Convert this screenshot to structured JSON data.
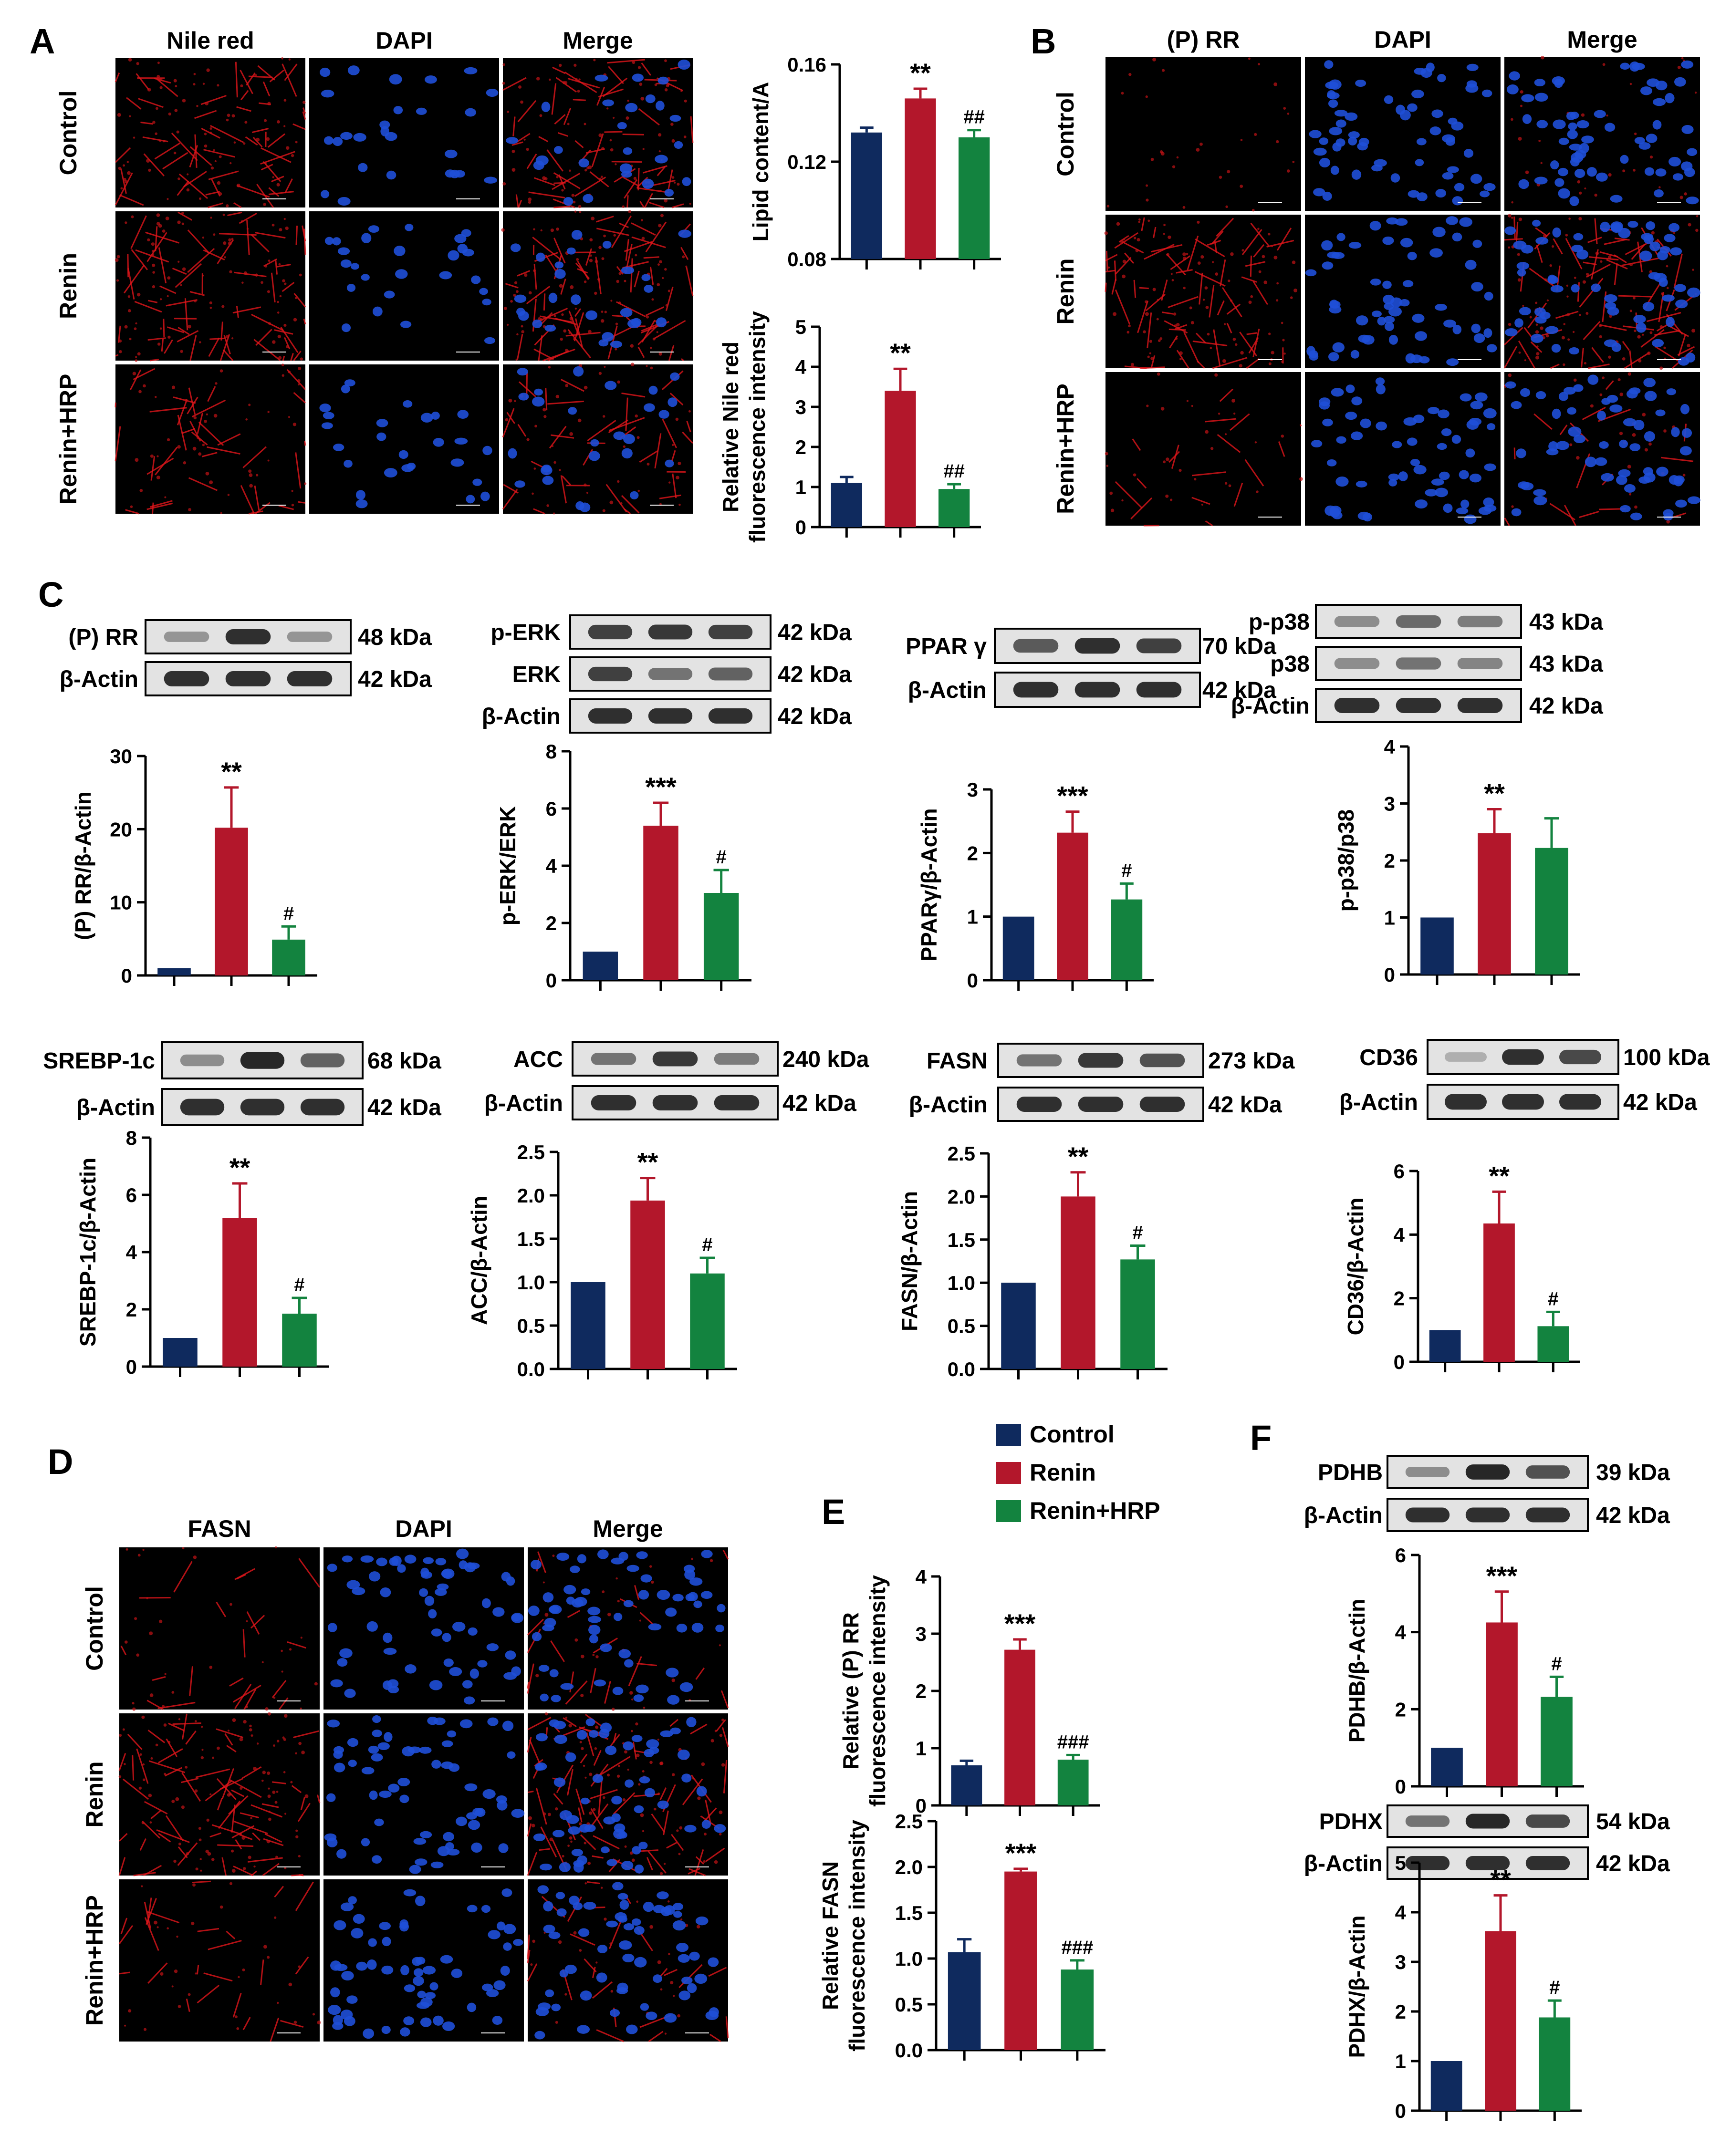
{
  "panel_letters": {
    "A": "A",
    "B": "B",
    "C": "C",
    "D": "D",
    "E": "E",
    "F": "F"
  },
  "micrographs": {
    "A": {
      "columns": [
        "Nile red",
        "DAPI",
        "Merge"
      ],
      "rows": [
        "Control",
        "Renin",
        "Renin+HRP"
      ]
    },
    "B": {
      "columns": [
        "(P) RR",
        "DAPI",
        "Merge"
      ],
      "rows": [
        "Control",
        "Renin",
        "Renin+HRP"
      ]
    },
    "D": {
      "columns": [
        "FASN",
        "DAPI",
        "Merge"
      ],
      "rows": [
        "Control",
        "Renin",
        "Renin+HRP"
      ]
    }
  },
  "blots": {
    "prr": {
      "rows": [
        {
          "label": "(P) RR",
          "kda": "48 kDa"
        },
        {
          "label": "β-Actin",
          "kda": "42 kDa"
        }
      ]
    },
    "erk": {
      "rows": [
        {
          "label": "p-ERK",
          "kda": "42 kDa"
        },
        {
          "label": "ERK",
          "kda": "42 kDa"
        },
        {
          "label": "β-Actin",
          "kda": "42 kDa"
        }
      ]
    },
    "ppar": {
      "rows": [
        {
          "label": "PPAR γ",
          "kda": "70 kDa"
        },
        {
          "label": "β-Actin",
          "kda": "42 kDa"
        }
      ]
    },
    "p38": {
      "rows": [
        {
          "label": "p-p38",
          "kda": "43 kDa"
        },
        {
          "label": "p38",
          "kda": "43 kDa"
        },
        {
          "label": "β-Actin",
          "kda": "42 kDa"
        }
      ]
    },
    "srebp": {
      "rows": [
        {
          "label": "SREBP-1c",
          "kda": "68 kDa"
        },
        {
          "label": "β-Actin",
          "kda": "42 kDa"
        }
      ]
    },
    "acc": {
      "rows": [
        {
          "label": "ACC",
          "kda": "240 kDa"
        },
        {
          "label": "β-Actin",
          "kda": "42 kDa"
        }
      ]
    },
    "fasn": {
      "rows": [
        {
          "label": "FASN",
          "kda": "273 kDa"
        },
        {
          "label": "β-Actin",
          "kda": "42 kDa"
        }
      ]
    },
    "cd36": {
      "rows": [
        {
          "label": "CD36",
          "kda": "100 kDa"
        },
        {
          "label": "β-Actin",
          "kda": "42 kDa"
        }
      ]
    },
    "pdhb": {
      "rows": [
        {
          "label": "PDHB",
          "kda": "39 kDa"
        },
        {
          "label": "β-Actin",
          "kda": "42 kDa"
        }
      ]
    },
    "pdhx": {
      "rows": [
        {
          "label": "PDHX",
          "kda": "54 kDa"
        },
        {
          "label": "β-Actin",
          "kda": "42 kDa"
        }
      ]
    }
  },
  "legend": [
    {
      "name": "Control",
      "color": "#0f2a5e"
    },
    {
      "name": "Renin",
      "color": "#b3172b"
    },
    {
      "name": "Renin+HRP",
      "color": "#13833f"
    }
  ],
  "chart_data": [
    {
      "id": "lipid",
      "type": "bar",
      "categories": [
        "Control",
        "Renin",
        "Renin+HRP"
      ],
      "values": [
        0.132,
        0.146,
        0.13
      ],
      "errors": [
        0.002,
        0.004,
        0.003
      ],
      "marks": [
        "",
        "**",
        "##"
      ],
      "ylabel": [
        "Lipid content/A"
      ],
      "ylim": [
        0.08,
        0.16
      ],
      "ticks": [
        0.08,
        0.12,
        0.16
      ],
      "tick_labels": [
        "0.08",
        "0.12",
        "0.16"
      ]
    },
    {
      "id": "nile",
      "type": "bar",
      "categories": [
        "Control",
        "Renin",
        "Renin+HRP"
      ],
      "values": [
        1.1,
        3.4,
        0.95
      ],
      "errors": [
        0.15,
        0.55,
        0.12
      ],
      "marks": [
        "",
        "**",
        "##"
      ],
      "ylabel": [
        "Relative Nile red",
        "fluorescence intensity"
      ],
      "ylim": [
        0,
        5
      ],
      "ticks": [
        0,
        1,
        2,
        3,
        4,
        5
      ],
      "tick_labels": [
        "0",
        "1",
        "2",
        "3",
        "4",
        "5"
      ]
    },
    {
      "id": "prr",
      "type": "bar",
      "categories": [
        "Control",
        "Renin",
        "Renin+HRP"
      ],
      "values": [
        1,
        20.2,
        4.9
      ],
      "errors": [
        0,
        5.5,
        1.8
      ],
      "marks": [
        "",
        "**",
        "#"
      ],
      "ylabel": [
        "(P) RR/β-Actin"
      ],
      "ylim": [
        0,
        30
      ],
      "ticks": [
        0,
        10,
        20,
        30
      ],
      "tick_labels": [
        "0",
        "10",
        "20",
        "30"
      ]
    },
    {
      "id": "perk",
      "type": "bar",
      "categories": [
        "Control",
        "Renin",
        "Renin+HRP"
      ],
      "values": [
        1,
        5.4,
        3.05
      ],
      "errors": [
        0,
        0.8,
        0.8
      ],
      "marks": [
        "",
        "***",
        "#"
      ],
      "ylabel": [
        "p-ERK/ERK"
      ],
      "ylim": [
        0,
        8
      ],
      "ticks": [
        0,
        2,
        4,
        6,
        8
      ],
      "tick_labels": [
        "0",
        "2",
        "4",
        "6",
        "8"
      ]
    },
    {
      "id": "pparg",
      "type": "bar",
      "categories": [
        "Control",
        "Renin",
        "Renin+HRP"
      ],
      "values": [
        1,
        2.32,
        1.27
      ],
      "errors": [
        0,
        0.33,
        0.25
      ],
      "marks": [
        "",
        "***",
        "#"
      ],
      "ylabel": [
        "PPARγ/β-Actin"
      ],
      "ylim": [
        0,
        3
      ],
      "ticks": [
        0,
        1,
        2,
        3
      ],
      "tick_labels": [
        "0",
        "1",
        "2",
        "3"
      ]
    },
    {
      "id": "pp38",
      "type": "bar",
      "categories": [
        "Control",
        "Renin",
        "Renin+HRP"
      ],
      "values": [
        1,
        2.48,
        2.22
      ],
      "errors": [
        0,
        0.42,
        0.52
      ],
      "marks": [
        "",
        "**",
        ""
      ],
      "ylabel": [
        "p-p38/p38"
      ],
      "ylim": [
        0,
        4
      ],
      "ticks": [
        0,
        1,
        2,
        3,
        4
      ],
      "tick_labels": [
        "0",
        "1",
        "2",
        "3",
        "4"
      ]
    },
    {
      "id": "srebp",
      "type": "bar",
      "categories": [
        "Control",
        "Renin",
        "Renin+HRP"
      ],
      "values": [
        1,
        5.2,
        1.85
      ],
      "errors": [
        0,
        1.2,
        0.55
      ],
      "marks": [
        "",
        "**",
        "#"
      ],
      "ylabel": [
        "SREBP-1c/β-Actin"
      ],
      "ylim": [
        0,
        8
      ],
      "ticks": [
        0,
        2,
        4,
        6,
        8
      ],
      "tick_labels": [
        "0",
        "2",
        "4",
        "6",
        "8"
      ]
    },
    {
      "id": "acc",
      "type": "bar",
      "categories": [
        "Control",
        "Renin",
        "Renin+HRP"
      ],
      "values": [
        1,
        1.94,
        1.1
      ],
      "errors": [
        0,
        0.26,
        0.18
      ],
      "marks": [
        "",
        "**",
        "#"
      ],
      "ylabel": [
        "ACC/β-Actin"
      ],
      "ylim": [
        0,
        2.5
      ],
      "ticks": [
        0,
        0.5,
        1,
        1.5,
        2,
        2.5
      ],
      "tick_labels": [
        "0.0",
        "0.5",
        "1.0",
        "1.5",
        "2.0",
        "2.5"
      ]
    },
    {
      "id": "fasn",
      "type": "bar",
      "categories": [
        "Control",
        "Renin",
        "Renin+HRP"
      ],
      "values": [
        1,
        2.0,
        1.27
      ],
      "errors": [
        0,
        0.28,
        0.16
      ],
      "marks": [
        "",
        "**",
        "#"
      ],
      "ylabel": [
        "FASN/β-Actin"
      ],
      "ylim": [
        0,
        2.5
      ],
      "ticks": [
        0,
        0.5,
        1,
        1.5,
        2,
        2.5
      ],
      "tick_labels": [
        "0.0",
        "0.5",
        "1.0",
        "1.5",
        "2.0",
        "2.5"
      ]
    },
    {
      "id": "cd36",
      "type": "bar",
      "categories": [
        "Control",
        "Renin",
        "Renin+HRP"
      ],
      "values": [
        1,
        4.35,
        1.12
      ],
      "errors": [
        0,
        1.0,
        0.45
      ],
      "marks": [
        "",
        "**",
        "#"
      ],
      "ylabel": [
        "CD36/β-Actin"
      ],
      "ylim": [
        0,
        6
      ],
      "ticks": [
        0,
        2,
        4,
        6
      ],
      "tick_labels": [
        "0",
        "2",
        "4",
        "6"
      ]
    },
    {
      "id": "e_prr",
      "type": "bar",
      "categories": [
        "Control",
        "Renin",
        "Renin+HRP"
      ],
      "values": [
        0.7,
        2.72,
        0.8
      ],
      "errors": [
        0.08,
        0.18,
        0.08
      ],
      "marks": [
        "",
        "***",
        "###"
      ],
      "ylabel": [
        "Relative (P) RR",
        "fluorescence intensity"
      ],
      "ylim": [
        0,
        4
      ],
      "ticks": [
        0,
        1,
        2,
        3,
        4
      ],
      "tick_labels": [
        "0",
        "1",
        "2",
        "3",
        "4"
      ]
    },
    {
      "id": "e_fasn",
      "type": "bar",
      "categories": [
        "Control",
        "Renin",
        "Renin+HRP"
      ],
      "values": [
        1.07,
        1.95,
        0.88
      ],
      "errors": [
        0.14,
        0.03,
        0.1
      ],
      "marks": [
        "",
        "***",
        "###"
      ],
      "ylabel": [
        "Relative FASN",
        "fluorescence intensity"
      ],
      "ylim": [
        0,
        2.5
      ],
      "ticks": [
        0,
        0.5,
        1,
        1.5,
        2,
        2.5
      ],
      "tick_labels": [
        "0.0",
        "0.5",
        "1.0",
        "1.5",
        "2.0",
        "2.5"
      ]
    },
    {
      "id": "pdhb",
      "type": "bar",
      "categories": [
        "Control",
        "Renin",
        "Renin+HRP"
      ],
      "values": [
        1,
        4.25,
        2.32
      ],
      "errors": [
        0,
        0.8,
        0.52
      ],
      "marks": [
        "",
        "***",
        "#"
      ],
      "ylabel": [
        "PDHB/β-Actin"
      ],
      "ylim": [
        0,
        6
      ],
      "ticks": [
        0,
        2,
        4,
        6
      ],
      "tick_labels": [
        "0",
        "2",
        "4",
        "6"
      ]
    },
    {
      "id": "pdhx",
      "type": "bar",
      "categories": [
        "Control",
        "Renin",
        "Renin+HRP"
      ],
      "values": [
        1,
        3.62,
        1.88
      ],
      "errors": [
        0,
        0.72,
        0.34
      ],
      "marks": [
        "",
        "**",
        "#"
      ],
      "ylabel": [
        "PDHX/β-Actin"
      ],
      "ylim": [
        0,
        5
      ],
      "ticks": [
        0,
        1,
        2,
        3,
        4,
        5
      ],
      "tick_labels": [
        "0",
        "1",
        "2",
        "3",
        "4",
        "5"
      ]
    }
  ]
}
